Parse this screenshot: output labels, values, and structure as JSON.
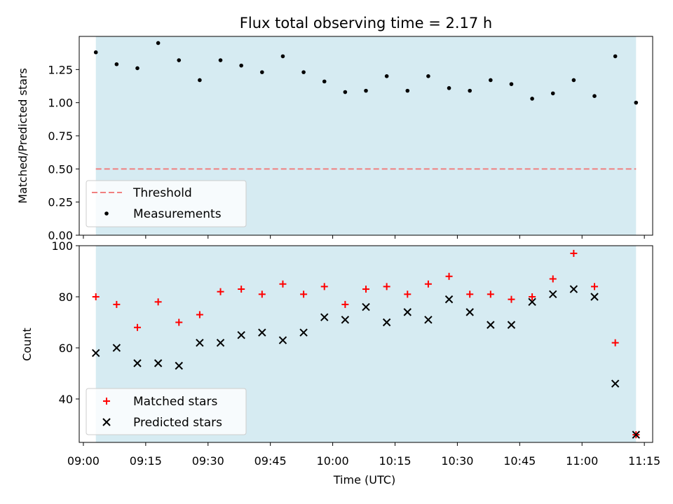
{
  "chart_data": [
    {
      "type": "scatter",
      "title": "Flux total observing time = 2.17 h",
      "ylabel": "Matched/Predicted stars",
      "xlabel": "",
      "ylim": [
        0,
        1.5
      ],
      "yticks": [
        "0.00",
        "0.25",
        "0.50",
        "0.75",
        "1.00",
        "1.25"
      ],
      "shaded_span": [
        "09:03",
        "11:13"
      ],
      "shade_color": "#add8e6",
      "threshold": {
        "name": "Threshold",
        "value": 0.5,
        "color": "#f08080"
      },
      "legend_position": "lower-left",
      "series": [
        {
          "name": "Measurements",
          "color": "#000000",
          "marker": "dot",
          "x": [
            "09:03",
            "09:08",
            "09:13",
            "09:18",
            "09:23",
            "09:28",
            "09:33",
            "09:38",
            "09:43",
            "09:48",
            "09:53",
            "09:58",
            "10:03",
            "10:08",
            "10:13",
            "10:18",
            "10:23",
            "10:28",
            "10:33",
            "10:38",
            "10:43",
            "10:48",
            "10:53",
            "10:58",
            "11:03",
            "11:08",
            "11:13"
          ],
          "values": [
            1.38,
            1.29,
            1.26,
            1.45,
            1.32,
            1.17,
            1.32,
            1.28,
            1.23,
            1.35,
            1.23,
            1.16,
            1.08,
            1.09,
            1.2,
            1.09,
            1.2,
            1.11,
            1.09,
            1.17,
            1.14,
            1.03,
            1.07,
            1.17,
            1.05,
            1.35,
            1.0
          ]
        }
      ]
    },
    {
      "type": "scatter",
      "title": "",
      "ylabel": "Count",
      "xlabel": "Time (UTC)",
      "ylim": [
        23,
        100
      ],
      "yticks": [
        "40",
        "60",
        "80",
        "100"
      ],
      "xticks": [
        "09:00",
        "09:15",
        "09:30",
        "09:45",
        "10:00",
        "10:15",
        "10:30",
        "10:45",
        "11:00",
        "11:15"
      ],
      "xlim": [
        "08:59",
        "11:17"
      ],
      "shaded_span": [
        "09:03",
        "11:13"
      ],
      "shade_color": "#add8e6",
      "legend_position": "lower-left",
      "series": [
        {
          "name": "Matched stars",
          "color": "#ff0000",
          "marker": "plus",
          "x": [
            "09:03",
            "09:08",
            "09:13",
            "09:18",
            "09:23",
            "09:28",
            "09:33",
            "09:38",
            "09:43",
            "09:48",
            "09:53",
            "09:58",
            "10:03",
            "10:08",
            "10:13",
            "10:18",
            "10:23",
            "10:28",
            "10:33",
            "10:38",
            "10:43",
            "10:48",
            "10:53",
            "10:58",
            "11:03",
            "11:08",
            "11:13"
          ],
          "values": [
            80,
            77,
            68,
            78,
            70,
            73,
            82,
            83,
            81,
            85,
            81,
            84,
            77,
            83,
            84,
            81,
            85,
            88,
            81,
            81,
            79,
            80,
            87,
            97,
            84,
            62,
            26
          ]
        },
        {
          "name": "Predicted stars",
          "color": "#000000",
          "marker": "x",
          "x": [
            "09:03",
            "09:08",
            "09:13",
            "09:18",
            "09:23",
            "09:28",
            "09:33",
            "09:38",
            "09:43",
            "09:48",
            "09:53",
            "09:58",
            "10:03",
            "10:08",
            "10:13",
            "10:18",
            "10:23",
            "10:28",
            "10:33",
            "10:38",
            "10:43",
            "10:48",
            "10:53",
            "10:58",
            "11:03",
            "11:08",
            "11:13"
          ],
          "values": [
            58,
            60,
            54,
            54,
            53,
            62,
            62,
            65,
            66,
            63,
            66,
            72,
            71,
            76,
            70,
            74,
            71,
            79,
            74,
            69,
            69,
            78,
            81,
            83,
            80,
            46,
            26
          ]
        }
      ]
    }
  ]
}
